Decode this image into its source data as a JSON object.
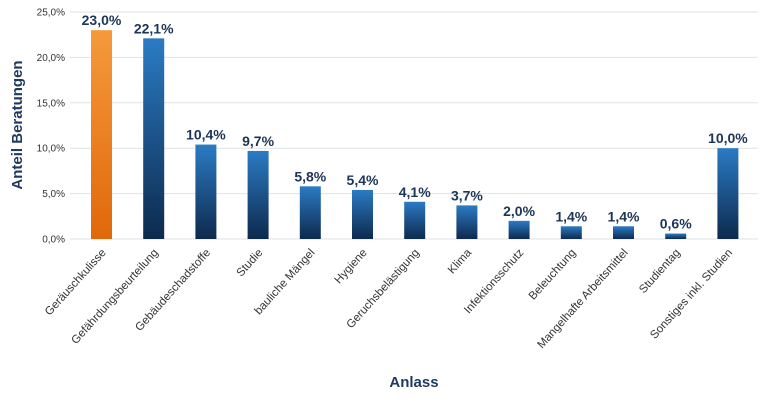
{
  "chart_data": {
    "type": "bar",
    "title": "",
    "xlabel": "Anlass",
    "ylabel": "Anteil Beratungen",
    "ylim": [
      0,
      25
    ],
    "yticks": [
      0,
      5,
      10,
      15,
      20,
      25
    ],
    "ytick_labels": [
      "0,0%",
      "5,0%",
      "10,0%",
      "15,0%",
      "20,0%",
      "25,0%"
    ],
    "grid": true,
    "categories": [
      "Geräuschkulisse",
      "Gefährdungsbeurteilung",
      "Gebäudeschadstoffe",
      "Studie",
      "bauliche Mängel",
      "Hygiene",
      "Geruchsbelästigung",
      "Klima",
      "Infektionsschutz",
      "Beleuchtung",
      "Mangelhafte Arbeitsmittel",
      "Studientag",
      "Sonstiges inkl. Studien"
    ],
    "values": [
      23.0,
      22.1,
      10.4,
      9.7,
      5.8,
      5.4,
      4.1,
      3.7,
      2.0,
      1.4,
      1.4,
      0.6,
      10.0
    ],
    "value_labels": [
      "23,0%",
      "22,1%",
      "10,4%",
      "9,7%",
      "5,8%",
      "5,4%",
      "4,1%",
      "3,7%",
      "2,0%",
      "1,4%",
      "1,4%",
      "0,6%",
      "10,0%"
    ],
    "colors": {
      "highlight_top": "#f59a3c",
      "highlight_bottom": "#e0680a",
      "bar_top": "#2b7bc4",
      "bar_bottom": "#0d2a4d",
      "grid": "#dde3ea",
      "label": "#1d3557"
    }
  }
}
